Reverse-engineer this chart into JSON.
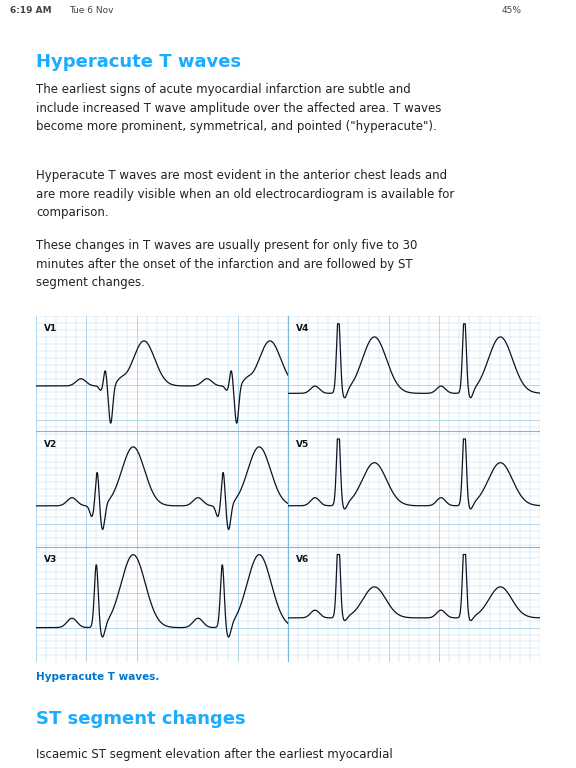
{
  "status_bar_time": "6:19 AM",
  "status_bar_date": "Tue 6 Nov",
  "status_bar_battery": "45%",
  "title": "Hyperacute T waves",
  "title_color": "#1AADFF",
  "title_fontsize": 13,
  "body_color": "#222222",
  "body_fontsize": 8.5,
  "paragraph1": "The earliest signs of acute myocardial infarction are subtle and\ninclude increased T wave amplitude over the affected area. T waves\nbecome more prominent, symmetrical, and pointed (\"hyperacute\").",
  "paragraph2": "Hyperacute T waves are most evident in the anterior chest leads and\nare more readily visible when an old electrocardiogram is available for\ncomparison.",
  "paragraph3": "These changes in T waves are usually present for only five to 30\nminutes after the onset of the infarction and are followed by ST\nsegment changes.",
  "ecg_bg_color": "#CBE8F5",
  "ecg_grid_minor_color": "#9DCDE8",
  "ecg_grid_major_color": "#7BB8DC",
  "ecg_line_color": "#111122",
  "ecg_labels": [
    "V1",
    "V2",
    "V3",
    "V4",
    "V5",
    "V6"
  ],
  "caption": "Hyperacute T waves.",
  "caption_color": "#0077CC",
  "caption_fontsize": 7.5,
  "section2_title": "ST segment changes",
  "section2_color": "#1AADFF",
  "section2_fontsize": 13,
  "section2_body": "Iscaemic ST segment elevation after the earliest myocardial",
  "bg_color": "#FFFFFF",
  "status_color": "#444444",
  "status_fontsize": 6.5,
  "ecg_label_fontsize": 6.5
}
